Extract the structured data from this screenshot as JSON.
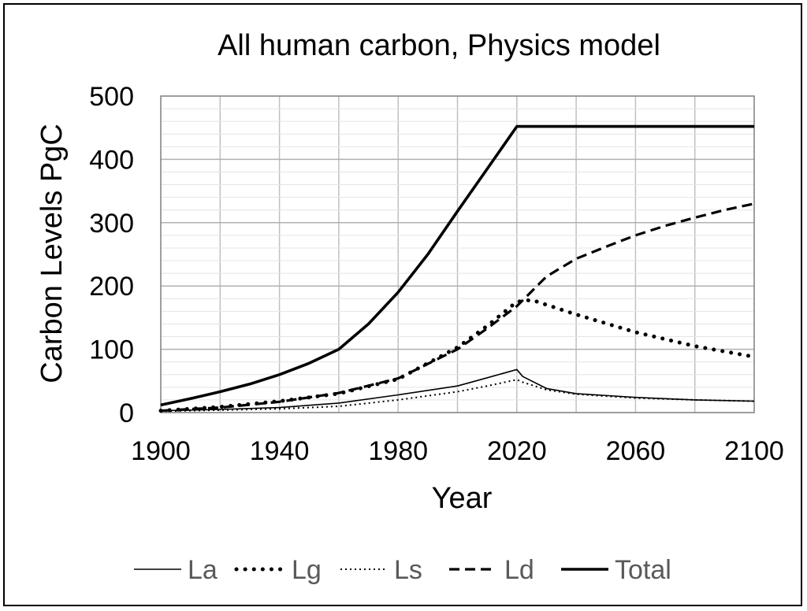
{
  "chart_data": {
    "type": "line",
    "title": "All human carbon, Physics model",
    "xlabel": "Year",
    "ylabel": "Carbon Levels PgC",
    "xlim": [
      1900,
      2100
    ],
    "ylim": [
      0,
      500
    ],
    "x_ticks": [
      1900,
      1940,
      1980,
      2020,
      2060,
      2100
    ],
    "y_ticks": [
      0,
      100,
      200,
      300,
      400,
      500
    ],
    "grid": true,
    "legend_position": "bottom",
    "series": [
      {
        "name": "La",
        "style": "solid-thin",
        "x": [
          1900,
          1920,
          1940,
          1960,
          1980,
          2000,
          2010,
          2020,
          2022,
          2030,
          2040,
          2060,
          2080,
          2100
        ],
        "y": [
          3,
          5,
          8,
          15,
          28,
          42,
          55,
          68,
          57,
          38,
          30,
          24,
          20,
          18
        ]
      },
      {
        "name": "Lg",
        "style": "dotted-thick",
        "x": [
          1900,
          1920,
          1940,
          1960,
          1980,
          2000,
          2010,
          2020,
          2025,
          2040,
          2060,
          2080,
          2100
        ],
        "y": [
          3,
          9,
          18,
          30,
          53,
          103,
          137,
          175,
          178,
          155,
          127,
          105,
          88
        ]
      },
      {
        "name": "Ls",
        "style": "dotted-thin",
        "x": [
          1900,
          1920,
          1940,
          1960,
          1980,
          2000,
          2010,
          2020,
          2022,
          2030,
          2040,
          2060,
          2080,
          2100
        ],
        "y": [
          2,
          4,
          6,
          10,
          20,
          33,
          42,
          52,
          48,
          36,
          29,
          23,
          20,
          18
        ]
      },
      {
        "name": "Ld",
        "style": "dashed",
        "x": [
          1900,
          1920,
          1940,
          1960,
          1980,
          2000,
          2010,
          2020,
          2030,
          2040,
          2050,
          2060,
          2070,
          2080,
          2090,
          2100
        ],
        "y": [
          3,
          8,
          17,
          31,
          54,
          100,
          133,
          168,
          215,
          243,
          262,
          280,
          295,
          308,
          320,
          330
        ]
      },
      {
        "name": "Total",
        "style": "solid-thick",
        "x": [
          1900,
          1910,
          1920,
          1930,
          1940,
          1950,
          1960,
          1970,
          1980,
          1990,
          2000,
          2010,
          2020,
          2030,
          2060,
          2100
        ],
        "y": [
          12,
          22,
          33,
          45,
          60,
          78,
          100,
          140,
          190,
          250,
          318,
          385,
          452,
          452,
          452,
          452
        ]
      }
    ]
  },
  "colors": {
    "line": "#000000",
    "grid": "#c0c0c0",
    "legend_text": "#595959"
  }
}
